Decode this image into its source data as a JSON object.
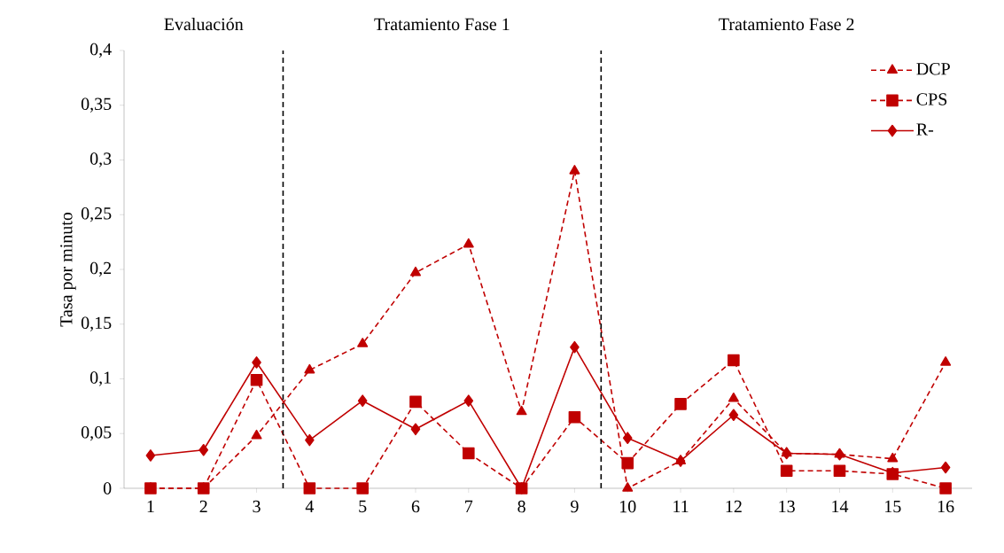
{
  "chart_data": {
    "type": "line",
    "ylabel": "Tasa por minuto",
    "categories": [
      "1",
      "2",
      "3",
      "4",
      "5",
      "6",
      "7",
      "8",
      "9",
      "10",
      "11",
      "12",
      "13",
      "14",
      "15",
      "16"
    ],
    "series": [
      {
        "name": "DCP",
        "color": "#c00000",
        "marker": "triangle",
        "line_style": "dashed",
        "values": [
          0,
          0,
          0.048,
          0.108,
          0.132,
          0.197,
          0.223,
          0.07,
          0.29,
          0,
          0.025,
          0.082,
          0.032,
          0.031,
          0.027,
          0.115
        ]
      },
      {
        "name": "CPS",
        "color": "#c00000",
        "marker": "square",
        "line_style": "dashed",
        "values": [
          0,
          0,
          0.099,
          0,
          0,
          0.079,
          0.032,
          0,
          0.065,
          0.023,
          0.077,
          0.117,
          0.016,
          0.016,
          0.013,
          0
        ]
      },
      {
        "name": "R-",
        "color": "#c00000",
        "marker": "diamond",
        "line_style": "solid",
        "values": [
          0.03,
          0.035,
          0.115,
          0.044,
          0.08,
          0.054,
          0.08,
          0,
          0.129,
          0.046,
          0.025,
          0.067,
          0.032,
          0.031,
          0.014,
          0.019
        ]
      }
    ],
    "ylim": [
      0,
      0.4
    ],
    "yticks": [
      0,
      {
        "value": 0.05,
        "label": "0,05"
      },
      {
        "value": 0.1,
        "label": "0,1"
      },
      {
        "value": 0.15,
        "label": "0,15"
      },
      {
        "value": 0.2,
        "label": "0,2"
      },
      {
        "value": 0.25,
        "label": "0,25"
      },
      {
        "value": 0.3,
        "label": "0,3"
      },
      {
        "value": 0.35,
        "label": "0,35"
      },
      {
        "value": 0.4,
        "label": "0,4"
      }
    ],
    "annotations": [
      "Evaluación",
      "Tratamiento Fase 1",
      "Tratamiento Fase 2"
    ],
    "legend": "top right",
    "grid": false
  }
}
